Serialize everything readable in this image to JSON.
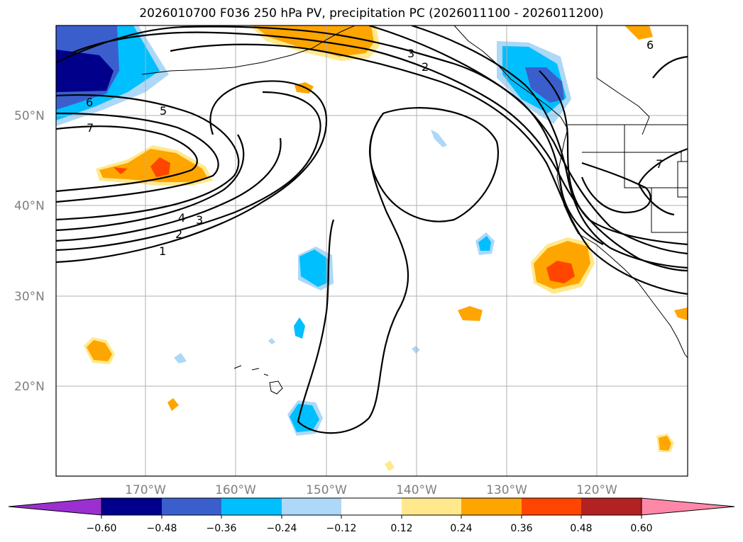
{
  "title": "2026010700 F036 250 hPa PV, precipitation PC (2026011100 - 2026011200)",
  "lat_labels": [
    "50°N",
    "40°N",
    "30°N",
    "20°N"
  ],
  "lon_labels": [
    "170°W",
    "160°W",
    "150°W",
    "140°W",
    "130°W",
    "120°W"
  ],
  "pv_contour_labels": [
    "1",
    "2",
    "3",
    "4",
    "5",
    "6",
    "7",
    "3",
    "2",
    "6",
    "7"
  ],
  "colorbar": {
    "ticks": [
      "−0.60",
      "−0.48",
      "−0.36",
      "−0.24",
      "−0.12",
      "0.12",
      "0.24",
      "0.36",
      "0.48",
      "0.60"
    ],
    "colors": [
      "#9b30d0",
      "#00008b",
      "#3a5fcd",
      "#00bfff",
      "#add8f7",
      "#ffffff",
      "#ffe98c",
      "#ffa500",
      "#ff4500",
      "#b22222",
      "#ff88a8"
    ]
  }
}
